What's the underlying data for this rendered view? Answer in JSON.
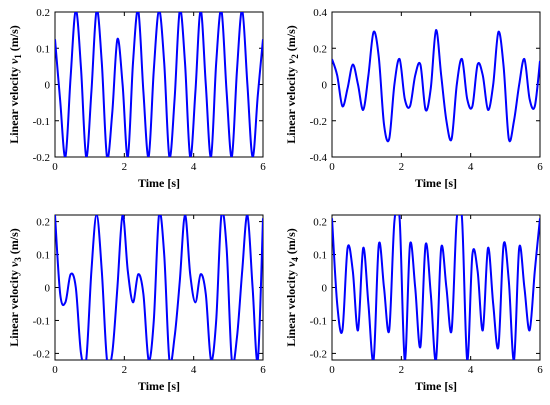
{
  "chart_data": [
    {
      "type": "line",
      "xlabel": "Time [s]",
      "ylabel": {
        "prefix": "Linear velocity ",
        "symbol": "v",
        "subscript": "1",
        "suffix": " (m/s)"
      },
      "xlim": [
        0,
        6
      ],
      "ylim": [
        -0.2,
        0.2
      ],
      "xticks": [
        0,
        2,
        4,
        6
      ],
      "yticks": [
        -0.2,
        -0.1,
        0,
        0.1,
        0.2
      ],
      "ytick_labels": [
        "-0.2",
        "-0.1",
        "0",
        "0.1",
        "0.2"
      ],
      "line_color": "#0000ff",
      "series": [
        {
          "x": [
            0,
            0.15,
            0.3,
            0.45,
            0.6,
            0.75,
            0.9,
            1.05,
            1.2,
            1.35,
            1.5,
            1.65,
            1.8,
            1.95,
            2.1,
            2.25,
            2.4,
            2.55,
            2.7,
            2.85,
            3.0,
            3.15,
            3.3,
            3.45,
            3.6,
            3.75,
            3.9,
            4.05,
            4.2,
            4.35,
            4.5,
            4.65,
            4.8,
            4.95,
            5.1,
            5.25,
            5.4,
            5.55,
            5.7,
            5.85,
            6.0
          ],
          "y": [
            0.125,
            -0.045,
            -0.2,
            0.02,
            0.205,
            0.045,
            -0.2,
            -0.02,
            0.205,
            0.06,
            -0.2,
            -0.08,
            0.125,
            0.0,
            -0.2,
            0.06,
            0.205,
            -0.02,
            -0.2,
            0.04,
            0.205,
            0.06,
            -0.2,
            -0.04,
            0.205,
            0.06,
            -0.2,
            -0.02,
            0.205,
            0.0,
            -0.2,
            0.06,
            0.205,
            -0.02,
            -0.2,
            0.04,
            0.205,
            0.0,
            -0.2,
            -0.03,
            0.125
          ]
        }
      ]
    },
    {
      "type": "line",
      "xlabel": "Time [s]",
      "ylabel": {
        "prefix": "Linear velocity ",
        "symbol": "v",
        "subscript": "2",
        "suffix": " (m/s)"
      },
      "xlim": [
        0,
        6
      ],
      "ylim": [
        -0.4,
        0.4
      ],
      "xticks": [
        0,
        2,
        4,
        6
      ],
      "yticks": [
        -0.4,
        -0.2,
        0,
        0.2,
        0.4
      ],
      "ytick_labels": [
        "-0.4",
        "-0.2",
        "0",
        "0.2",
        "0.4"
      ],
      "line_color": "#0000ff",
      "series": [
        {
          "x": [
            0,
            0.15,
            0.3,
            0.45,
            0.6,
            0.75,
            0.9,
            1.05,
            1.2,
            1.35,
            1.5,
            1.65,
            1.8,
            1.95,
            2.1,
            2.25,
            2.4,
            2.55,
            2.7,
            2.85,
            3.0,
            3.15,
            3.3,
            3.45,
            3.6,
            3.75,
            3.9,
            4.05,
            4.2,
            4.35,
            4.5,
            4.65,
            4.8,
            4.95,
            5.1,
            5.25,
            5.4,
            5.55,
            5.7,
            5.85,
            6.0
          ],
          "y": [
            0.14,
            0.05,
            -0.12,
            -0.02,
            0.11,
            0.0,
            -0.14,
            0.05,
            0.29,
            0.15,
            -0.22,
            -0.3,
            0.0,
            0.14,
            -0.08,
            -0.12,
            0.05,
            0.11,
            -0.14,
            -0.02,
            0.3,
            0.05,
            -0.2,
            -0.3,
            0.0,
            0.14,
            -0.08,
            -0.12,
            0.11,
            0.05,
            -0.14,
            0.0,
            0.29,
            0.1,
            -0.3,
            -0.2,
            0.0,
            0.14,
            -0.08,
            -0.12,
            0.13
          ]
        }
      ]
    },
    {
      "type": "line",
      "xlabel": "Time [s]",
      "ylabel": {
        "prefix": "Linear velocity ",
        "symbol": "v",
        "subscript": "3",
        "suffix": " (m/s)"
      },
      "xlim": [
        0,
        6
      ],
      "ylim": [
        -0.22,
        0.22
      ],
      "xticks": [
        0,
        2,
        4,
        6
      ],
      "yticks": [
        -0.2,
        -0.1,
        0,
        0.1,
        0.2
      ],
      "ytick_labels": [
        "-0.2",
        "-0.1",
        "0",
        "0.1",
        "0.2"
      ],
      "line_color": "#0000ff",
      "series": [
        {
          "x": [
            0,
            0.15,
            0.3,
            0.45,
            0.6,
            0.75,
            0.9,
            1.05,
            1.2,
            1.35,
            1.5,
            1.65,
            1.8,
            1.95,
            2.1,
            2.25,
            2.4,
            2.55,
            2.7,
            2.85,
            3.0,
            3.15,
            3.3,
            3.45,
            3.6,
            3.75,
            3.9,
            4.05,
            4.2,
            4.35,
            4.5,
            4.65,
            4.8,
            4.95,
            5.1,
            5.25,
            5.4,
            5.55,
            5.7,
            5.85,
            6.0
          ],
          "y": [
            0.22,
            -0.02,
            -0.045,
            0.04,
            0.0,
            -0.2,
            -0.22,
            0.05,
            0.22,
            0.05,
            -0.22,
            -0.2,
            0.0,
            0.22,
            0.05,
            -0.045,
            0.04,
            -0.02,
            -0.22,
            -0.1,
            0.22,
            0.1,
            -0.22,
            -0.15,
            0.02,
            0.22,
            0.04,
            -0.045,
            0.04,
            -0.02,
            -0.22,
            -0.1,
            0.22,
            0.12,
            -0.22,
            -0.15,
            0.05,
            0.22,
            0.0,
            -0.22,
            0.21
          ]
        }
      ]
    },
    {
      "type": "line",
      "xlabel": "Time [s]",
      "ylabel": {
        "prefix": "Linear velocity ",
        "symbol": "v",
        "subscript": "4",
        "suffix": " (m/s)"
      },
      "xlim": [
        0,
        6
      ],
      "ylim": [
        -0.22,
        0.22
      ],
      "xticks": [
        0,
        2,
        4,
        6
      ],
      "yticks": [
        -0.2,
        -0.1,
        0,
        0.1,
        0.2
      ],
      "ytick_labels": [
        "-0.2",
        "-0.1",
        "0",
        "0.1",
        "0.2"
      ],
      "line_color": "#0000ff",
      "series": [
        {
          "x": [
            0,
            0.15,
            0.3,
            0.45,
            0.6,
            0.75,
            0.9,
            1.05,
            1.2,
            1.35,
            1.5,
            1.65,
            1.8,
            1.95,
            2.1,
            2.25,
            2.4,
            2.55,
            2.7,
            2.85,
            3.0,
            3.15,
            3.3,
            3.45,
            3.6,
            3.75,
            3.9,
            4.05,
            4.2,
            4.35,
            4.5,
            4.65,
            4.8,
            4.95,
            5.1,
            5.25,
            5.4,
            5.55,
            5.7,
            5.85,
            6.0
          ],
          "y": [
            0.21,
            -0.05,
            -0.13,
            0.12,
            0.05,
            -0.13,
            0.12,
            -0.05,
            -0.22,
            0.13,
            0.0,
            -0.13,
            0.2,
            0.21,
            -0.22,
            0.13,
            0.0,
            -0.18,
            0.13,
            -0.02,
            -0.22,
            0.12,
            0.0,
            -0.13,
            0.21,
            0.21,
            -0.22,
            0.1,
            0.05,
            -0.13,
            0.12,
            -0.05,
            -0.18,
            0.13,
            0.02,
            -0.22,
            0.12,
            0.0,
            -0.13,
            0.05,
            0.21
          ]
        }
      ]
    }
  ]
}
